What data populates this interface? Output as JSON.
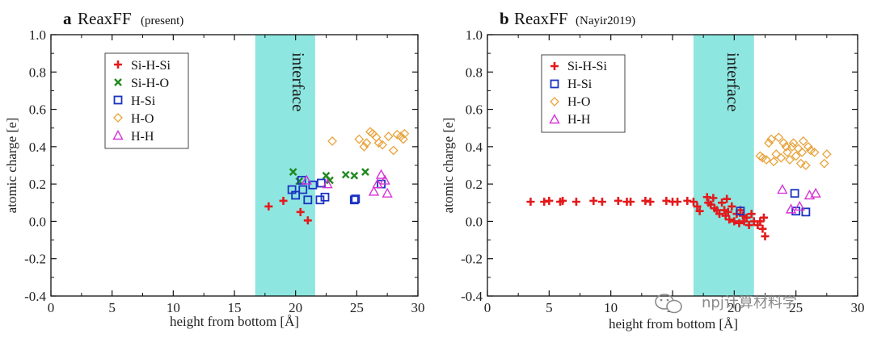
{
  "chart_data": [
    {
      "type": "scatter",
      "panel_letter": "a",
      "title_main": "ReaxFF",
      "title_sub": "(present)",
      "xlabel": "height from bottom [Å]",
      "ylabel": "atomic charge [e]",
      "xlim": [
        0,
        30
      ],
      "ylim": [
        -0.4,
        1.0
      ],
      "xticks": [
        "0",
        "5",
        "10",
        "15",
        "20",
        "25",
        "30"
      ],
      "yticks": [
        "-0.4",
        "-0.2",
        "0.0",
        "0.2",
        "0.4",
        "0.6",
        "0.8",
        "1.0"
      ],
      "interface": {
        "label": "interface",
        "x_start": 16.7,
        "x_end": 21.6,
        "color": "#8ee6e0"
      },
      "series": [
        {
          "name": "Si-H-Si",
          "marker": "plus",
          "color": "#e31a1c",
          "points": [
            [
              17.8,
              0.08
            ],
            [
              19.0,
              0.11
            ],
            [
              20.4,
              0.05
            ],
            [
              21.0,
              0.005
            ]
          ]
        },
        {
          "name": "Si-H-O",
          "marker": "x",
          "color": "#1f8a1f",
          "points": [
            [
              19.8,
              0.265
            ],
            [
              20.3,
              0.215
            ],
            [
              22.5,
              0.245
            ],
            [
              22.8,
              0.22
            ],
            [
              24.1,
              0.25
            ],
            [
              24.8,
              0.245
            ],
            [
              25.7,
              0.265
            ]
          ]
        },
        {
          "name": "H-Si",
          "marker": "square",
          "color": "#1a33c2",
          "points": [
            [
              19.7,
              0.17
            ],
            [
              20.0,
              0.14
            ],
            [
              20.5,
              0.22
            ],
            [
              20.6,
              0.17
            ],
            [
              21.0,
              0.115
            ],
            [
              21.4,
              0.195
            ],
            [
              22.0,
              0.115
            ],
            [
              22.1,
              0.205
            ],
            [
              22.4,
              0.13
            ],
            [
              24.8,
              0.115
            ],
            [
              24.9,
              0.12
            ],
            [
              27.0,
              0.2
            ]
          ]
        },
        {
          "name": "H-O",
          "marker": "diamond",
          "color": "#e8a33c",
          "points": [
            [
              23.0,
              0.43
            ],
            [
              25.2,
              0.44
            ],
            [
              25.6,
              0.4
            ],
            [
              25.8,
              0.42
            ],
            [
              26.1,
              0.48
            ],
            [
              26.3,
              0.47
            ],
            [
              26.6,
              0.45
            ],
            [
              26.8,
              0.42
            ],
            [
              27.1,
              0.41
            ],
            [
              27.6,
              0.455
            ],
            [
              28.0,
              0.38
            ],
            [
              28.3,
              0.465
            ],
            [
              28.6,
              0.455
            ],
            [
              28.8,
              0.44
            ],
            [
              28.9,
              0.47
            ]
          ]
        },
        {
          "name": "H-H",
          "marker": "triangle",
          "color": "#d633d6",
          "points": [
            [
              20.9,
              0.22
            ],
            [
              22.6,
              0.2
            ],
            [
              26.4,
              0.16
            ],
            [
              26.7,
              0.2
            ],
            [
              27.0,
              0.25
            ],
            [
              27.3,
              0.22
            ],
            [
              27.5,
              0.15
            ]
          ]
        }
      ]
    },
    {
      "type": "scatter",
      "panel_letter": "b",
      "title_main": "ReaxFF",
      "title_sub": "(Nayir2019)",
      "xlabel": "height from bottom [Å]",
      "ylabel": "atomic charge [e]",
      "xlim": [
        0,
        30
      ],
      "ylim": [
        -0.4,
        1.0
      ],
      "xticks": [
        "0",
        "5",
        "10",
        "15",
        "20",
        "25",
        "30"
      ],
      "yticks": [
        "-0.4",
        "-0.2",
        "0.0",
        "0.2",
        "0.4",
        "0.6",
        "0.8",
        "1.0"
      ],
      "interface": {
        "label": "interface",
        "x_start": 16.7,
        "x_end": 21.6,
        "color": "#8ee6e0"
      },
      "series": [
        {
          "name": "Si-H-Si",
          "marker": "plus",
          "color": "#e31a1c",
          "points": [
            [
              3.5,
              0.105
            ],
            [
              4.6,
              0.105
            ],
            [
              5.0,
              0.11
            ],
            [
              5.9,
              0.105
            ],
            [
              6.1,
              0.11
            ],
            [
              7.2,
              0.105
            ],
            [
              8.6,
              0.11
            ],
            [
              9.3,
              0.105
            ],
            [
              10.6,
              0.11
            ],
            [
              11.3,
              0.105
            ],
            [
              11.6,
              0.105
            ],
            [
              12.8,
              0.11
            ],
            [
              13.2,
              0.105
            ],
            [
              14.5,
              0.11
            ],
            [
              15.0,
              0.105
            ],
            [
              15.4,
              0.105
            ],
            [
              16.2,
              0.11
            ],
            [
              16.7,
              0.105
            ],
            [
              17.0,
              0.08
            ],
            [
              17.2,
              0.055
            ],
            [
              17.8,
              0.13
            ],
            [
              17.9,
              0.1
            ],
            [
              18.1,
              0.09
            ],
            [
              18.3,
              0.125
            ],
            [
              18.4,
              0.07
            ],
            [
              18.6,
              0.06
            ],
            [
              18.8,
              0.04
            ],
            [
              19.0,
              0.1
            ],
            [
              19.2,
              0.06
            ],
            [
              19.3,
              0.03
            ],
            [
              19.4,
              0.12
            ],
            [
              19.5,
              0.05
            ],
            [
              19.6,
              0.01
            ],
            [
              19.8,
              0.08
            ],
            [
              20.0,
              0.0
            ],
            [
              20.2,
              0.04
            ],
            [
              20.4,
              -0.01
            ],
            [
              20.5,
              0.06
            ],
            [
              20.7,
              0.03
            ],
            [
              20.8,
              0.0
            ],
            [
              21.0,
              0.02
            ],
            [
              21.2,
              -0.02
            ],
            [
              21.4,
              0.04
            ],
            [
              21.6,
              0.0
            ],
            [
              21.9,
              -0.02
            ],
            [
              22.1,
              0.0
            ],
            [
              22.3,
              -0.04
            ],
            [
              22.4,
              0.02
            ],
            [
              22.5,
              -0.08
            ]
          ]
        },
        {
          "name": "H-Si",
          "marker": "square",
          "color": "#1a33c2",
          "points": [
            [
              20.5,
              0.055
            ],
            [
              24.9,
              0.15
            ],
            [
              25.0,
              0.055
            ],
            [
              25.8,
              0.05
            ]
          ]
        },
        {
          "name": "H-O",
          "marker": "diamond",
          "color": "#e8a33c",
          "points": [
            [
              22.1,
              0.35
            ],
            [
              22.3,
              0.34
            ],
            [
              22.6,
              0.33
            ],
            [
              22.8,
              0.42
            ],
            [
              23.0,
              0.44
            ],
            [
              23.2,
              0.32
            ],
            [
              23.4,
              0.36
            ],
            [
              23.6,
              0.45
            ],
            [
              23.8,
              0.34
            ],
            [
              24.0,
              0.42
            ],
            [
              24.2,
              0.4
            ],
            [
              24.3,
              0.37
            ],
            [
              24.5,
              0.33
            ],
            [
              24.7,
              0.4
            ],
            [
              24.8,
              0.42
            ],
            [
              25.0,
              0.35
            ],
            [
              25.2,
              0.39
            ],
            [
              25.4,
              0.31
            ],
            [
              25.5,
              0.37
            ],
            [
              25.6,
              0.43
            ],
            [
              25.8,
              0.3
            ],
            [
              26.0,
              0.4
            ],
            [
              26.2,
              0.38
            ],
            [
              26.5,
              0.37
            ],
            [
              27.3,
              0.31
            ],
            [
              27.5,
              0.36
            ]
          ]
        },
        {
          "name": "H-H",
          "marker": "triangle",
          "color": "#d633d6",
          "points": [
            [
              23.9,
              0.17
            ],
            [
              24.6,
              0.065
            ],
            [
              25.3,
              0.08
            ],
            [
              26.1,
              0.14
            ],
            [
              26.6,
              0.15
            ]
          ]
        }
      ]
    }
  ],
  "watermark": {
    "text": "npj计算材料学",
    "icon": "wechat-icon"
  }
}
